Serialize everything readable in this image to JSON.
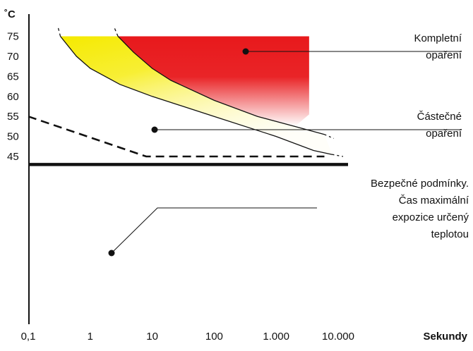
{
  "chart_data": {
    "type": "area",
    "ylabel": "˚C",
    "xlabel": "Sekundy",
    "x_scale": "log",
    "xlim": [
      0.1,
      25000
    ],
    "ylim": [
      41,
      77
    ],
    "x_ticks": [
      {
        "value": 0.1,
        "label": "0,1"
      },
      {
        "value": 1,
        "label": "1"
      },
      {
        "value": 10,
        "label": "10"
      },
      {
        "value": 100,
        "label": "100"
      },
      {
        "value": 1000,
        "label": "1.000"
      },
      {
        "value": 10000,
        "label": "10.000"
      }
    ],
    "y_ticks": [
      45,
      50,
      55,
      60,
      65,
      70,
      75
    ],
    "series": [
      {
        "name": "Kompletní opaření",
        "label_lines": [
          "Kompletní",
          "opaření"
        ],
        "color": "#e8191c",
        "boundary": [
          {
            "x": 2.8,
            "y": 75
          },
          {
            "x": 5,
            "y": 71
          },
          {
            "x": 10,
            "y": 67
          },
          {
            "x": 20,
            "y": 64
          },
          {
            "x": 100,
            "y": 59
          },
          {
            "x": 500,
            "y": 55
          },
          {
            "x": 2000,
            "y": 52.5
          },
          {
            "x": 6000,
            "y": 50.5
          }
        ],
        "x_max": 3400
      },
      {
        "name": "Částečné opaření",
        "label_lines": [
          "Částečné",
          "opaření"
        ],
        "color": "#f5ea00",
        "boundary": [
          {
            "x": 0.33,
            "y": 75
          },
          {
            "x": 0.6,
            "y": 70
          },
          {
            "x": 1,
            "y": 67
          },
          {
            "x": 3,
            "y": 63
          },
          {
            "x": 10,
            "y": 60
          },
          {
            "x": 100,
            "y": 55
          },
          {
            "x": 1000,
            "y": 50
          },
          {
            "x": 4000,
            "y": 46.5
          },
          {
            "x": 8000,
            "y": 45.5
          }
        ]
      },
      {
        "name": "Bezpečné podmínky. Čas maximální expozice určený teplotou",
        "label_lines": [
          "Bezpečné podmínky.",
          "Čas maximální",
          "expozice určený",
          "teplotou"
        ],
        "color": "#111111",
        "style": "dashed",
        "points": [
          {
            "x": 0.1,
            "y": 55
          },
          {
            "x": 8,
            "y": 45
          },
          {
            "x": 6000,
            "y": 45
          }
        ]
      }
    ],
    "baseline": {
      "y": 43
    },
    "grid": false
  }
}
